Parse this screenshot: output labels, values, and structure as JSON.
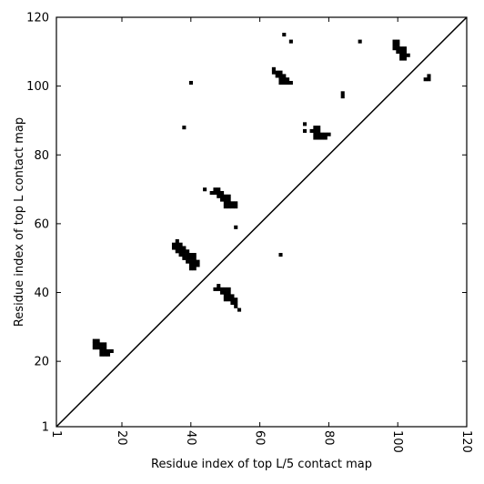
{
  "chart_data": {
    "type": "heatmap",
    "xlabel": "Residue index of top L/5 contact map",
    "ylabel": "Residue index of top L contact map",
    "xlim": [
      1,
      120
    ],
    "ylim": [
      1,
      120
    ],
    "x_ticks": [
      "1",
      "20",
      "40",
      "60",
      "80",
      "100",
      "120"
    ],
    "y_ticks": [
      "1",
      "20",
      "40",
      "60",
      "80",
      "100",
      "120"
    ],
    "x_tick_values": [
      1,
      20,
      40,
      60,
      80,
      100,
      120
    ],
    "y_tick_values": [
      1,
      20,
      40,
      60,
      80,
      100,
      120
    ],
    "diagonal": true,
    "grid": false,
    "cell_color": "#000000",
    "contacts_upper": [
      [
        12,
        26
      ],
      [
        13,
        26
      ],
      [
        12,
        25
      ],
      [
        13,
        25
      ],
      [
        14,
        25
      ],
      [
        15,
        25
      ],
      [
        12,
        24
      ],
      [
        13,
        24
      ],
      [
        14,
        24
      ],
      [
        15,
        24
      ],
      [
        14,
        23
      ],
      [
        15,
        23
      ],
      [
        16,
        23
      ],
      [
        17,
        23
      ],
      [
        14,
        22
      ],
      [
        15,
        22
      ],
      [
        16,
        22
      ],
      [
        36,
        55
      ],
      [
        35,
        54
      ],
      [
        36,
        54
      ],
      [
        37,
        54
      ],
      [
        35,
        53
      ],
      [
        36,
        53
      ],
      [
        37,
        53
      ],
      [
        38,
        53
      ],
      [
        36,
        52
      ],
      [
        37,
        52
      ],
      [
        38,
        52
      ],
      [
        39,
        52
      ],
      [
        37,
        51
      ],
      [
        38,
        51
      ],
      [
        39,
        51
      ],
      [
        40,
        51
      ],
      [
        41,
        51
      ],
      [
        38,
        50
      ],
      [
        39,
        50
      ],
      [
        40,
        50
      ],
      [
        41,
        50
      ],
      [
        39,
        49
      ],
      [
        40,
        49
      ],
      [
        41,
        49
      ],
      [
        42,
        49
      ],
      [
        40,
        48
      ],
      [
        41,
        48
      ],
      [
        42,
        48
      ],
      [
        40,
        47
      ],
      [
        41,
        47
      ],
      [
        48,
        42
      ],
      [
        47,
        41
      ],
      [
        48,
        41
      ],
      [
        49,
        41
      ],
      [
        50,
        41
      ],
      [
        51,
        41
      ],
      [
        49,
        40
      ],
      [
        50,
        40
      ],
      [
        51,
        40
      ],
      [
        50,
        39
      ],
      [
        51,
        39
      ],
      [
        52,
        39
      ],
      [
        50,
        38
      ],
      [
        51,
        38
      ],
      [
        52,
        38
      ],
      [
        53,
        38
      ],
      [
        52,
        37
      ],
      [
        53,
        37
      ],
      [
        53,
        36
      ],
      [
        54,
        35
      ],
      [
        44,
        70
      ],
      [
        47,
        70
      ],
      [
        48,
        70
      ],
      [
        46,
        69
      ],
      [
        47,
        69
      ],
      [
        48,
        69
      ],
      [
        49,
        69
      ],
      [
        48,
        68
      ],
      [
        49,
        68
      ],
      [
        50,
        68
      ],
      [
        51,
        68
      ],
      [
        49,
        67
      ],
      [
        50,
        67
      ],
      [
        51,
        67
      ],
      [
        50,
        66
      ],
      [
        51,
        66
      ],
      [
        52,
        66
      ],
      [
        53,
        66
      ],
      [
        50,
        65
      ],
      [
        51,
        65
      ],
      [
        52,
        65
      ],
      [
        53,
        65
      ],
      [
        53,
        59
      ],
      [
        66,
        51
      ],
      [
        38,
        88
      ],
      [
        40,
        101
      ],
      [
        64,
        105
      ],
      [
        64,
        104
      ],
      [
        65,
        104
      ],
      [
        66,
        104
      ],
      [
        65,
        103
      ],
      [
        66,
        103
      ],
      [
        67,
        103
      ],
      [
        66,
        102
      ],
      [
        67,
        102
      ],
      [
        68,
        102
      ],
      [
        66,
        101
      ],
      [
        67,
        101
      ],
      [
        68,
        101
      ],
      [
        69,
        101
      ],
      [
        67,
        115
      ],
      [
        69,
        113
      ],
      [
        73,
        89
      ],
      [
        73,
        87
      ],
      [
        76,
        88
      ],
      [
        77,
        88
      ],
      [
        75,
        87
      ],
      [
        76,
        87
      ],
      [
        77,
        87
      ],
      [
        76,
        86
      ],
      [
        77,
        86
      ],
      [
        78,
        86
      ],
      [
        79,
        86
      ],
      [
        80,
        86
      ],
      [
        76,
        85
      ],
      [
        77,
        85
      ],
      [
        78,
        85
      ],
      [
        79,
        85
      ],
      [
        84,
        98
      ],
      [
        84,
        97
      ],
      [
        89,
        113
      ],
      [
        99,
        113
      ],
      [
        100,
        113
      ],
      [
        99,
        112
      ],
      [
        100,
        112
      ],
      [
        99,
        111
      ],
      [
        100,
        111
      ],
      [
        101,
        111
      ],
      [
        102,
        111
      ],
      [
        100,
        110
      ],
      [
        101,
        110
      ],
      [
        102,
        110
      ],
      [
        101,
        109
      ],
      [
        102,
        109
      ],
      [
        103,
        109
      ],
      [
        101,
        108
      ],
      [
        102,
        108
      ],
      [
        109,
        103
      ],
      [
        108,
        102
      ],
      [
        109,
        102
      ]
    ]
  }
}
